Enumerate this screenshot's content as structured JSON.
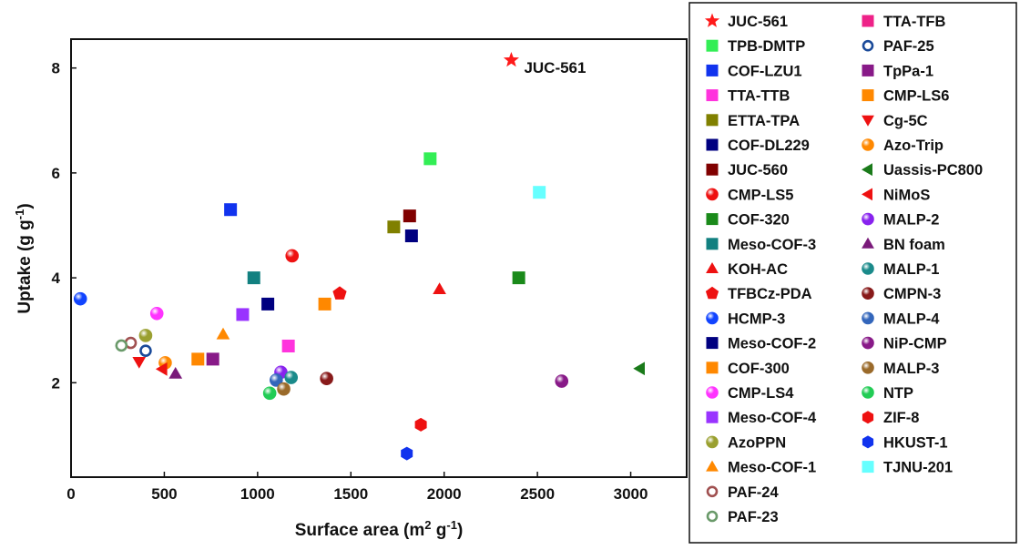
{
  "chart_data": {
    "type": "scatter",
    "xlabel": "Surface area (m² g⁻¹)",
    "ylabel": "Uptake (g g⁻¹)",
    "xlim": [
      0,
      3300
    ],
    "ylim": [
      0.2,
      8.55
    ],
    "xticks": [
      0,
      500,
      1000,
      1500,
      2000,
      2500,
      3000
    ],
    "yticks": [
      2,
      4,
      6,
      8
    ],
    "grid": false,
    "legend_position": "right",
    "annotations": [
      {
        "text": "JUC-561",
        "x": 2360,
        "y": 8.15
      }
    ],
    "series": [
      {
        "name": "JUC-561",
        "color": "#ff1a1a",
        "marker": "star",
        "points": [
          [
            2360,
            8.15
          ]
        ]
      },
      {
        "name": "TPB-DMTP",
        "color": "#33ee55",
        "marker": "square",
        "points": [
          [
            1925,
            6.27
          ]
        ]
      },
      {
        "name": "COF-LZU1",
        "color": "#1133ee",
        "marker": "square",
        "points": [
          [
            855,
            5.3
          ]
        ]
      },
      {
        "name": "TTA-TTB",
        "color": "#ff33dd",
        "marker": "square",
        "points": [
          [
            1165,
            2.7
          ]
        ]
      },
      {
        "name": "ETTA-TPA",
        "color": "#808000",
        "marker": "square",
        "points": [
          [
            1730,
            4.97
          ]
        ]
      },
      {
        "name": "COF-DL229",
        "color": "#000080",
        "marker": "square",
        "points": [
          [
            1825,
            4.8
          ]
        ]
      },
      {
        "name": "JUC-560",
        "color": "#800000",
        "marker": "square",
        "points": [
          [
            1815,
            5.18
          ]
        ]
      },
      {
        "name": "CMP-LS5",
        "color": "#ee1111",
        "marker": "ball",
        "points": [
          [
            1185,
            4.42
          ]
        ]
      },
      {
        "name": "COF-320",
        "color": "#1a8a1a",
        "marker": "square",
        "points": [
          [
            2400,
            4.0
          ]
        ]
      },
      {
        "name": "Meso-COF-3",
        "color": "#128080",
        "marker": "square",
        "points": [
          [
            980,
            4.0
          ]
        ]
      },
      {
        "name": "KOH-AC",
        "color": "#ee1111",
        "marker": "triangle-up",
        "points": [
          [
            1975,
            3.78
          ]
        ]
      },
      {
        "name": "TFBCz-PDA",
        "color": "#ee1111",
        "marker": "pentagon",
        "points": [
          [
            1440,
            3.7
          ]
        ]
      },
      {
        "name": "HCMP-3",
        "color": "#1144ff",
        "marker": "ball",
        "points": [
          [
            50,
            3.6
          ]
        ]
      },
      {
        "name": "Meso-COF-2",
        "color": "#000080",
        "marker": "square",
        "points": [
          [
            1055,
            3.5
          ]
        ]
      },
      {
        "name": "COF-300",
        "color": "#ff8800",
        "marker": "square",
        "points": [
          [
            680,
            2.45
          ],
          [
            1360,
            3.5
          ]
        ]
      },
      {
        "name": "CMP-LS4",
        "color": "#ff33ff",
        "marker": "ball",
        "points": [
          [
            460,
            3.32
          ]
        ]
      },
      {
        "name": "Meso-COF-4",
        "color": "#9933ff",
        "marker": "square",
        "points": [
          [
            920,
            3.3
          ]
        ]
      },
      {
        "name": "AzoPPN",
        "color": "#9aa030",
        "marker": "ball",
        "points": [
          [
            400,
            2.9
          ]
        ]
      },
      {
        "name": "Meso-COF-1",
        "color": "#ff8800",
        "marker": "triangle-up",
        "points": [
          [
            815,
            2.92
          ]
        ]
      },
      {
        "name": "PAF-24",
        "color": "#a05050",
        "marker": "ring",
        "points": [
          [
            320,
            2.76
          ]
        ]
      },
      {
        "name": "PAF-23",
        "color": "#6a9a6a",
        "marker": "ring",
        "points": [
          [
            270,
            2.71
          ]
        ]
      },
      {
        "name": "TTA-TFB",
        "color": "#ee2288",
        "marker": "square",
        "points": []
      },
      {
        "name": "PAF-25",
        "color": "#1a4a99",
        "marker": "ring",
        "points": [
          [
            400,
            2.61
          ]
        ]
      },
      {
        "name": "TpPa-1",
        "color": "#881a88",
        "marker": "square",
        "points": [
          [
            760,
            2.45
          ]
        ]
      },
      {
        "name": "CMP-LS6",
        "color": "#ff8800",
        "marker": "square",
        "points": []
      },
      {
        "name": "Cg-5C",
        "color": "#ee1111",
        "marker": "triangle-down",
        "points": [
          [
            365,
            2.4
          ]
        ]
      },
      {
        "name": "Azo-Trip",
        "color": "#ff8800",
        "marker": "ball",
        "points": [
          [
            505,
            2.38
          ]
        ]
      },
      {
        "name": "Uassis-PC800",
        "color": "#1a7a1a",
        "marker": "triangle-left",
        "points": [
          [
            3050,
            2.27
          ]
        ]
      },
      {
        "name": "NiMoS",
        "color": "#ee1111",
        "marker": "triangle-left",
        "points": [
          [
            490,
            2.26
          ]
        ]
      },
      {
        "name": "MALP-2",
        "color": "#8822ee",
        "marker": "ball",
        "points": [
          [
            1125,
            2.2
          ]
        ]
      },
      {
        "name": "BN foam",
        "color": "#7a1a7a",
        "marker": "triangle-up",
        "points": [
          [
            560,
            2.17
          ]
        ]
      },
      {
        "name": "MALP-1",
        "color": "#1a8a8a",
        "marker": "ball",
        "points": [
          [
            1180,
            2.1
          ]
        ]
      },
      {
        "name": "CMPN-3",
        "color": "#881a1a",
        "marker": "ball",
        "points": [
          [
            1370,
            2.08
          ]
        ]
      },
      {
        "name": "MALP-4",
        "color": "#3366bb",
        "marker": "ball",
        "points": [
          [
            1100,
            2.05
          ]
        ]
      },
      {
        "name": "NiP-CMP",
        "color": "#881a88",
        "marker": "ball",
        "points": [
          [
            2630,
            2.03
          ]
        ]
      },
      {
        "name": "MALP-3",
        "color": "#9a6a2a",
        "marker": "ball",
        "points": [
          [
            1140,
            1.88
          ]
        ]
      },
      {
        "name": "NTP",
        "color": "#22cc55",
        "marker": "ball",
        "points": [
          [
            1065,
            1.8
          ]
        ]
      },
      {
        "name": "ZIF-8",
        "color": "#ee1111",
        "marker": "hexagon",
        "points": [
          [
            1875,
            1.2
          ]
        ]
      },
      {
        "name": "HKUST-1",
        "color": "#1133ee",
        "marker": "hexagon",
        "points": [
          [
            1800,
            0.65
          ]
        ]
      },
      {
        "name": "TJNU-201",
        "color": "#66ffff",
        "marker": "square",
        "points": [
          [
            2510,
            5.63
          ]
        ]
      }
    ]
  }
}
